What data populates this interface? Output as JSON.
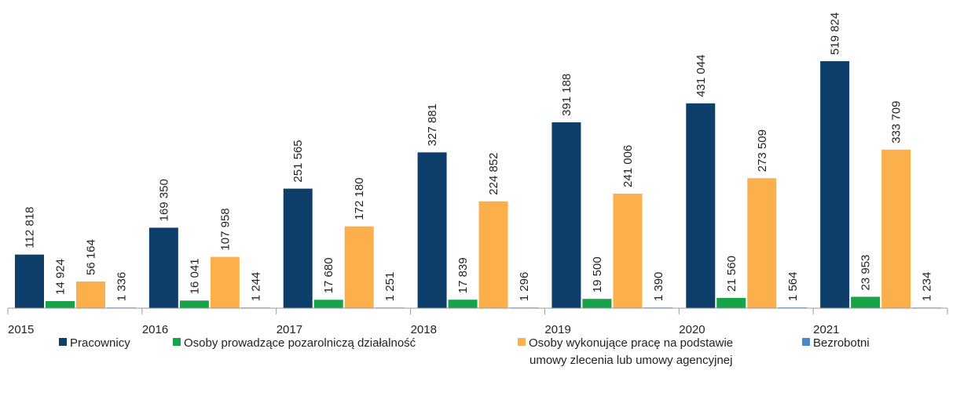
{
  "chart_data": {
    "type": "bar",
    "categories": [
      "2015",
      "2016",
      "2017",
      "2018",
      "2019",
      "2020",
      "2021"
    ],
    "series": [
      {
        "name": "Pracownicy",
        "color": "#0e3f6b",
        "values": [
          112818,
          169350,
          251565,
          327881,
          391188,
          431044,
          519824
        ],
        "value_labels": [
          "112 818",
          "169 350",
          "251 565",
          "327 881",
          "391 188",
          "431 044",
          "519 824"
        ]
      },
      {
        "name": "Osoby prowadzące pozarolniczą działalność",
        "color": "#17a347",
        "values": [
          14924,
          16041,
          17680,
          17839,
          19500,
          21560,
          23953
        ],
        "value_labels": [
          "14 924",
          "16 041",
          "17 680",
          "17 839",
          "19 500",
          "21 560",
          "23 953"
        ]
      },
      {
        "name": "Osoby wykonujące pracę na podstawie\numowy zlecenia lub umowy agencyjnej",
        "color": "#fbb04c",
        "values": [
          56164,
          107958,
          172180,
          224852,
          241006,
          273509,
          333709
        ],
        "value_labels": [
          "56 164",
          "107 958",
          "172 180",
          "224 852",
          "241 006",
          "273 509",
          "333 709"
        ]
      },
      {
        "name": "Bezrobotni",
        "color": "#4a86c8",
        "values": [
          1336,
          1244,
          1251,
          1296,
          1390,
          1564,
          1234
        ],
        "value_labels": [
          "1 336",
          "1 244",
          "1 251",
          "1 296",
          "1 390",
          "1 564",
          "1 234"
        ]
      }
    ],
    "legend": "bottom"
  }
}
